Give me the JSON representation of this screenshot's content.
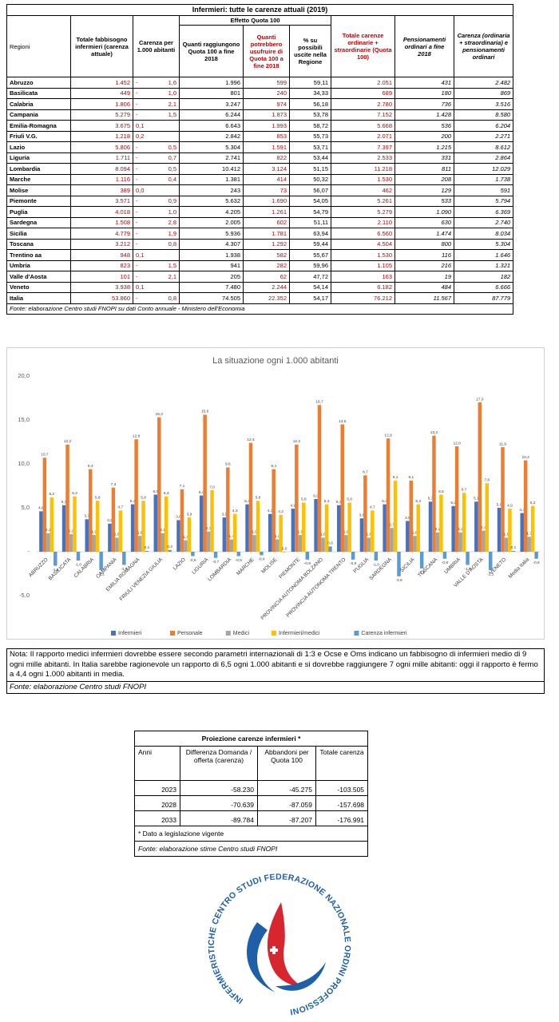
{
  "table": {
    "title": "Infermieri: tutte le carenze attuali (2019)",
    "group": "Effetto Quota 100",
    "headers": [
      "Regioni",
      "Totale fabbisogno infermieri (carenza attuale)",
      "Carenza per 1.000 abitanti",
      "Quanti raggiungono Quota 100 a fine 2018",
      "Quanti potrebbero usufruire di Quota 100 a fine 2018",
      "% su possibili uscite nella Regione",
      "Totale carenze ordinarie + straordinarie (Quota 100)",
      "Pensionamenti ordinari a fine 2018",
      "Carenza (ordinaria + straordinaria) e pensionamenti ordinari"
    ],
    "rows": [
      [
        "Abruzzo",
        "1.452",
        "- 1,6",
        "1.996",
        "599",
        "59,11",
        "2.051",
        "431",
        "2.482"
      ],
      [
        "Basilicata",
        "449",
        "- 1,0",
        "801",
        "240",
        "34,33",
        "689",
        "180",
        "869"
      ],
      [
        "Calabria",
        "1.806",
        "- 2,1",
        "3.247",
        "974",
        "56,18",
        "2.780",
        "736",
        "3.516"
      ],
      [
        "Campania",
        "5.279",
        "- 1,5",
        "6.244",
        "1.873",
        "53,78",
        "7.152",
        "1.428",
        "8.580"
      ],
      [
        "Emilia-Romagna",
        "3.675",
        "0,1",
        "6.643",
        "1.993",
        "58,72",
        "5.668",
        "536",
        "6.204"
      ],
      [
        "Friuli V.G.",
        "1.218",
        "0,2",
        "2.842",
        "853",
        "55,73",
        "2.071",
        "200",
        "2.271"
      ],
      [
        "Lazio",
        "5.806",
        "- 0,5",
        "5.304",
        "1.591",
        "53,71",
        "7.397",
        "1.215",
        "8.612"
      ],
      [
        "Liguria",
        "1.711",
        "- 0,7",
        "2.741",
        "822",
        "53,44",
        "2.533",
        "331",
        "2.864"
      ],
      [
        "Lombardia",
        "8.094",
        "- 0,5",
        "10.412",
        "3.124",
        "51,15",
        "11.218",
        "811",
        "12.029"
      ],
      [
        "Marche",
        "1.116",
        "- 0,4",
        "1.381",
        "414",
        "50,32",
        "1.530",
        "208",
        "1.738"
      ],
      [
        "Molise",
        "389",
        "0,0",
        "243",
        "73",
        "56,07",
        "462",
        "129",
        "591"
      ],
      [
        "Piemonte",
        "3.571",
        "- 0,9",
        "5.632",
        "1.690",
        "54,05",
        "5.261",
        "533",
        "5.794"
      ],
      [
        "Puglia",
        "4.018",
        "- 1,0",
        "4.205",
        "1.261",
        "54,79",
        "5.279",
        "1.090",
        "6.369"
      ],
      [
        "Sardegna",
        "1.508",
        "- 2,8",
        "2.005",
        "602",
        "51,11",
        "2.110",
        "630",
        "2.740"
      ],
      [
        "Sicilia",
        "4.779",
        "- 1,9",
        "5.936",
        "1.781",
        "63,94",
        "6.560",
        "1.474",
        "8.034"
      ],
      [
        "Toscana",
        "3.212",
        "- 0,8",
        "4.307",
        "1.292",
        "59,44",
        "4.504",
        "800",
        "5.304"
      ],
      [
        "Trentino aa",
        "948",
        "0,1",
        "1.938",
        "582",
        "55,67",
        "1.530",
        "116",
        "1.646"
      ],
      [
        "Umbria",
        "823",
        "- 1,5",
        "941",
        "282",
        "59,96",
        "1.105",
        "216",
        "1.321"
      ],
      [
        "Valle d'Aosta",
        "101",
        "- 2,1",
        "205",
        "62",
        "47,72",
        "163",
        "19",
        "182"
      ],
      [
        "Veneto",
        "3.938",
        "0,1",
        "7.480",
        "2.244",
        "54,14",
        "6.182",
        "484",
        "6.666"
      ],
      [
        "Italia",
        "53.860",
        "- 0,8",
        "74.505",
        "22.352",
        "54,17",
        "76.212",
        "11.567",
        "87.779"
      ]
    ],
    "source": "Fonte: elaborazione Centro studi FNOPI su dati Conto annuale - Ministero dell'Economia"
  },
  "chart_data": {
    "type": "bar",
    "title": "La situazione ogni 1.000 abitanti",
    "categories": [
      "ABRUZZO",
      "BASILICATA",
      "CALABRIA",
      "CAMPANIA",
      "EMILIA ROMAGNA",
      "FRIULI VENEZIA GIULIA",
      "LAZIO",
      "LIGURIA",
      "LOMBARDIA",
      "MARCHE",
      "MOLISE",
      "PIEMONTE",
      "PROVINCIA AUTONOMA BOLZANO",
      "PROVINCIA AUTONOMA TRENTO",
      "PUGLIA",
      "SARDEGNA",
      "SICILIA",
      "TOSCANA",
      "UMBRIA",
      "VALLE D'AOSTA",
      "VENETO",
      "Media Italia"
    ],
    "series": [
      {
        "name": "Infermieri",
        "color": "#4472c4",
        "values": [
          4.6,
          5.3,
          3.7,
          3.2,
          5.4,
          6.5,
          3.6,
          6.4,
          3.9,
          5.4,
          4.3,
          4.9,
          6.0,
          5.3,
          3.8,
          5.4,
          3.5,
          5.7,
          5.2,
          5.7,
          5.0,
          4.4
        ],
        "value_labels": [
          "4,6",
          "5,3",
          "3,7",
          "3,2",
          "5,4",
          "6,5",
          "3,6",
          "6,4",
          "3,9",
          "5,4",
          "4,3",
          "4,9",
          "6,0",
          "5,3",
          "3,8",
          "5,4",
          "3,5",
          "5,7",
          "5,2",
          "5,7",
          "5,0",
          "4,4"
        ]
      },
      {
        "name": "Personale",
        "color": "#ed7d31",
        "values": [
          10.7,
          12.2,
          9.4,
          7.3,
          12.8,
          15.3,
          7.1,
          15.6,
          9.6,
          12.4,
          9.4,
          12.2,
          16.7,
          14.5,
          8.7,
          12.9,
          8.1,
          13.2,
          12.0,
          17.0,
          11.9,
          10.4
        ],
        "value_labels": [
          "10,7",
          "12,2",
          "9,4",
          "7,3",
          "12,8",
          "15,3",
          "7,1",
          "15,6",
          "9,6",
          "12,4",
          "9,4",
          "12,2",
          "16,7",
          "14,5",
          "8,7",
          "12,9",
          "8,1",
          "13,2",
          "12,0",
          "17,0",
          "11,9",
          "10,4"
        ]
      },
      {
        "name": "Medici",
        "color": "#a5a5a5",
        "values": [
          2.1,
          2.0,
          1.9,
          1.6,
          1.8,
          2.1,
          1.3,
          2.3,
          1.4,
          1.9,
          1.4,
          1.9,
          1.6,
          1.9,
          1.6,
          2.7,
          1.8,
          2.2,
          2.2,
          2.4,
          1.6,
          1.7
        ],
        "value_labels": [
          "2,1",
          "2,0",
          "1,9",
          "1,6",
          "1,8",
          "2,1",
          "1,3",
          "2,3",
          "1,4",
          "1,9",
          "1,4",
          "1,9",
          "1,6",
          "1,9",
          "1,6",
          "2,7",
          "1,8",
          "2,2",
          "2,2",
          "2,4",
          "1,6",
          "1,7"
        ]
      },
      {
        "name": "Infermieri/medici",
        "color": "#ffc000",
        "values": [
          6.2,
          6.3,
          5.8,
          4.7,
          5.8,
          6.3,
          3.9,
          7.0,
          4.3,
          5.8,
          4.2,
          5.6,
          5.4,
          5.6,
          4.7,
          8.1,
          5.4,
          6.5,
          6.7,
          7.8,
          4.9,
          5.2
        ],
        "value_labels": [
          "6,2",
          "6,3",
          "5,8",
          "4,7",
          "5,8",
          "6,3",
          "3,9",
          "7,0",
          "4,3",
          "5,8",
          "4,2",
          "5,6",
          "5,4",
          "5,6",
          "4,7",
          "8,1",
          "5,4",
          "6,5",
          "6,7",
          "7,8",
          "4,9",
          "5,2"
        ]
      },
      {
        "name": "Carenza infermieri",
        "color": "#5b9bd5",
        "values": [
          -1.6,
          -1.0,
          -2.1,
          -1.5,
          0.1,
          0.2,
          -0.5,
          -0.7,
          -0.5,
          -0.4,
          0.0,
          -0.9,
          0.6,
          -0.9,
          -1.0,
          -2.8,
          -1.9,
          -0.8,
          -1.5,
          -2.1,
          0.1,
          -0.8
        ],
        "value_labels": [
          "-1,6",
          "-1,0",
          "-2,1",
          "-1,5",
          "0,1",
          "0,2",
          "-0,5",
          "-0,7",
          "-0,5",
          "-0,4",
          "0,0",
          "-0,9",
          "0,6",
          "-0,9",
          "-1,0",
          "-2,8",
          "-1,9",
          "-0,8",
          "-1,5",
          "-2,1",
          "0,1",
          "-0,8"
        ]
      }
    ],
    "ylim": [
      -5,
      20
    ],
    "yticks": [
      {
        "value": -5,
        "label": "-5,0"
      },
      {
        "value": 0,
        "label": "-"
      },
      {
        "value": 5,
        "label": "5,0"
      },
      {
        "value": 10,
        "label": "10,0"
      },
      {
        "value": 15,
        "label": "15,0"
      },
      {
        "value": 20,
        "label": "20,0"
      }
    ],
    "grid": false,
    "legend": "bottom"
  },
  "note": {
    "text": "Nota: Il rapporto medici infermieri dovrebbe essere secondo parametri internazionali di 1:3 e Ocse e Oms indicano un fabbisogno di infermieri medio di 9 ogni mille abitanti. In Italia sarebbe ragionevole un rapporto di 6,5 ogni 1.000 abitanti e si dovrebbe raggiungere 7 ogni mille abitanti: oggi il rapporto è fermo a 4,4 ogni 1.000 abitanti in media.",
    "source": "Fonte: elaborazione Centro studi FNOPI"
  },
  "projection": {
    "title": "Proiezione carenze infermieri *",
    "headers": [
      "Anni",
      "Differenza Domanda / offerta (carenza)",
      "Abbandoni per Quota 100",
      "Totale carenza"
    ],
    "rows": [
      [
        "2023",
        "-58.230",
        "-45.275",
        "-103.505"
      ],
      [
        "2028",
        "-70.639",
        "-87.059",
        "-157.698"
      ],
      [
        "2033",
        "-89.784",
        "-87.207",
        "-176.991"
      ]
    ],
    "footnote": "* Dato a legislazione vigente",
    "source": "Fonte: elaborazione stime Centro studi FNOPI"
  },
  "logo": {
    "text": "INFERMIERISTICHE CENTRO STUDI FEDERAZIONE NAZIONALE ORDINI PROFESSIONI"
  }
}
